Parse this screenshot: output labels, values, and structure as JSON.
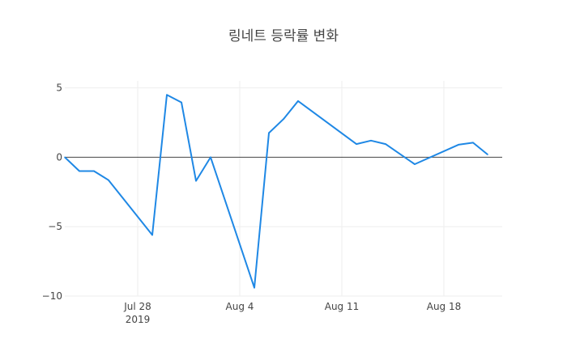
{
  "chart_data": {
    "type": "line",
    "title": "링네트 등락률 변화",
    "xlabel": "",
    "ylabel": "",
    "xlim": [
      "2019-07-23",
      "2019-08-22"
    ],
    "ylim": [
      -10,
      5.5
    ],
    "grid": true,
    "legend": "none",
    "line_color": "#1f88e5",
    "zero_line_color": "#444444",
    "x_ticks": [
      {
        "date": "2019-07-28",
        "label": "Jul 28",
        "sub": "2019"
      },
      {
        "date": "2019-08-04",
        "label": "Aug 4",
        "sub": ""
      },
      {
        "date": "2019-08-11",
        "label": "Aug 11",
        "sub": ""
      },
      {
        "date": "2019-08-18",
        "label": "Aug 18",
        "sub": ""
      }
    ],
    "y_ticks": [
      {
        "value": 5,
        "label": "5"
      },
      {
        "value": 0,
        "label": "0"
      },
      {
        "value": -5,
        "label": "−5"
      },
      {
        "value": -10,
        "label": "−10"
      }
    ],
    "series": [
      {
        "x": [
          "2019-07-23",
          "2019-07-24",
          "2019-07-25",
          "2019-07-26",
          "2019-07-29",
          "2019-07-30",
          "2019-07-31",
          "2019-08-01",
          "2019-08-02",
          "2019-08-05",
          "2019-08-06",
          "2019-08-07",
          "2019-08-08",
          "2019-08-12",
          "2019-08-13",
          "2019-08-14",
          "2019-08-16",
          "2019-08-19",
          "2019-08-20",
          "2019-08-21"
        ],
        "values": [
          0.0,
          -1.0,
          -1.0,
          -1.65,
          -5.6,
          4.5,
          3.95,
          -1.7,
          0.0,
          -9.4,
          1.75,
          2.75,
          4.05,
          0.95,
          1.2,
          0.95,
          -0.5,
          0.9,
          1.05,
          0.2
        ]
      }
    ]
  }
}
